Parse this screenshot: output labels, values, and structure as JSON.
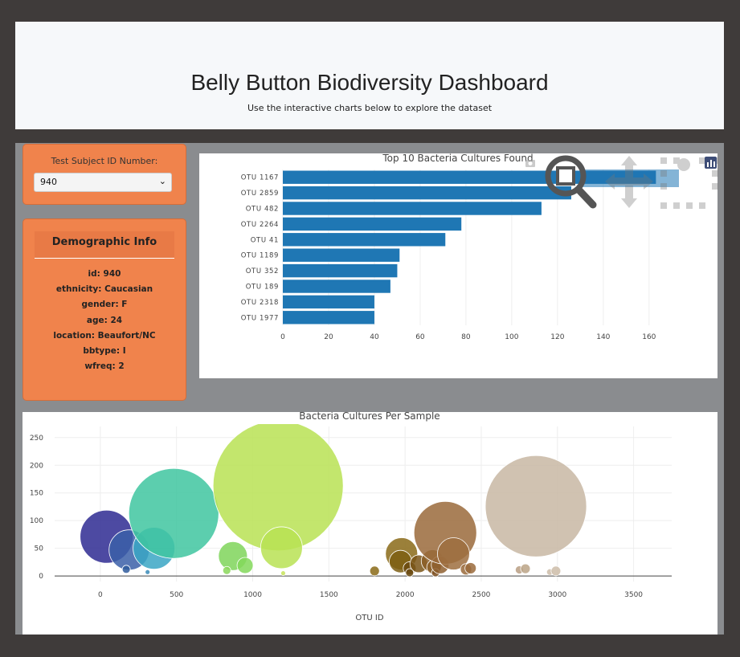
{
  "header": {
    "title": "Belly Button Biodiversity Dashboard",
    "subtitle": "Use the interactive charts below to explore the dataset"
  },
  "selector": {
    "label": "Test Subject ID Number:",
    "value": "940"
  },
  "demographics": {
    "title": "Demographic Info",
    "lines": [
      "id: 940",
      "ethnicity: Caucasian",
      "gender: F",
      "age: 24",
      "location: Beaufort/NC",
      "bbtype: I",
      "wfreq: 2"
    ]
  },
  "icons": [
    "camera-icon",
    "zoom-icon",
    "pan-icon",
    "box-select-icon",
    "plotly-logo-icon"
  ],
  "chart_data": [
    {
      "type": "bar",
      "orientation": "horizontal",
      "title": "Top 10 Bacteria Cultures Found",
      "categories": [
        "OTU 1167",
        "OTU 2859",
        "OTU 482",
        "OTU 2264",
        "OTU 41",
        "OTU 1189",
        "OTU 352",
        "OTU 189",
        "OTU 2318",
        "OTU 1977"
      ],
      "values": [
        163,
        126,
        113,
        78,
        71,
        51,
        50,
        47,
        40,
        40
      ],
      "xlim": [
        0,
        172
      ],
      "xticks": [
        0,
        20,
        40,
        60,
        80,
        100,
        120,
        140,
        160
      ],
      "color": "#1f77b4",
      "grid": true
    },
    {
      "type": "scatter",
      "title": "Bacteria Cultures Per Sample",
      "xlabel": "OTU ID",
      "xlim": [
        -300,
        3750
      ],
      "ylim": [
        -10,
        270
      ],
      "xticks": [
        0,
        500,
        1000,
        1500,
        2000,
        2500,
        3000,
        3500
      ],
      "yticks": [
        0,
        50,
        100,
        150,
        200,
        250
      ],
      "points": [
        {
          "x": 41,
          "y": 71,
          "color": "#2e2a92"
        },
        {
          "x": 189,
          "y": 47,
          "color": "#3b5fa8"
        },
        {
          "x": 352,
          "y": 50,
          "color": "#3aa6c4"
        },
        {
          "x": 482,
          "y": 113,
          "color": "#3fc6a0"
        },
        {
          "x": 170,
          "y": 12,
          "color": "#2f5a9c"
        },
        {
          "x": 310,
          "y": 7,
          "color": "#3a8bb8"
        },
        {
          "x": 870,
          "y": 36,
          "color": "#7fd55a"
        },
        {
          "x": 950,
          "y": 19,
          "color": "#83d85a"
        },
        {
          "x": 830,
          "y": 10,
          "color": "#8ad75a"
        },
        {
          "x": 1167,
          "y": 163,
          "color": "#b8e254"
        },
        {
          "x": 1189,
          "y": 51,
          "color": "#b8e254"
        },
        {
          "x": 1200,
          "y": 5,
          "color": "#c7e35a"
        },
        {
          "x": 1800,
          "y": 9,
          "color": "#8a6a17"
        },
        {
          "x": 1977,
          "y": 40,
          "color": "#8a6a17"
        },
        {
          "x": 1970,
          "y": 26,
          "color": "#7d5e12"
        },
        {
          "x": 2030,
          "y": 14,
          "color": "#6b4a10"
        },
        {
          "x": 2030,
          "y": 6,
          "color": "#6b4a10"
        },
        {
          "x": 2090,
          "y": 22,
          "color": "#7a5518"
        },
        {
          "x": 2180,
          "y": 27,
          "color": "#8c5f28"
        },
        {
          "x": 2190,
          "y": 16,
          "color": "#8c5f28"
        },
        {
          "x": 2200,
          "y": 6,
          "color": "#7d4e1e"
        },
        {
          "x": 2230,
          "y": 20,
          "color": "#8f6030"
        },
        {
          "x": 2264,
          "y": 78,
          "color": "#9a6a3b"
        },
        {
          "x": 2318,
          "y": 40,
          "color": "#9e6e40"
        },
        {
          "x": 2400,
          "y": 12,
          "color": "#9a6a3b"
        },
        {
          "x": 2430,
          "y": 14,
          "color": "#9a6a3b"
        },
        {
          "x": 2750,
          "y": 11,
          "color": "#b89e82"
        },
        {
          "x": 2790,
          "y": 13,
          "color": "#bba386"
        },
        {
          "x": 2859,
          "y": 126,
          "color": "#c8b7a3"
        },
        {
          "x": 2950,
          "y": 7,
          "color": "#cdbca8"
        },
        {
          "x": 2990,
          "y": 9,
          "color": "#cdbca8"
        }
      ],
      "sizes": [
        33,
        25,
        26,
        56,
        5,
        3,
        18,
        10,
        5,
        81,
        26,
        3,
        6,
        20,
        14,
        8,
        5,
        11,
        14,
        9,
        5,
        11,
        39,
        20,
        7,
        7,
        5,
        6,
        63,
        4,
        6
      ],
      "grid": true
    }
  ]
}
